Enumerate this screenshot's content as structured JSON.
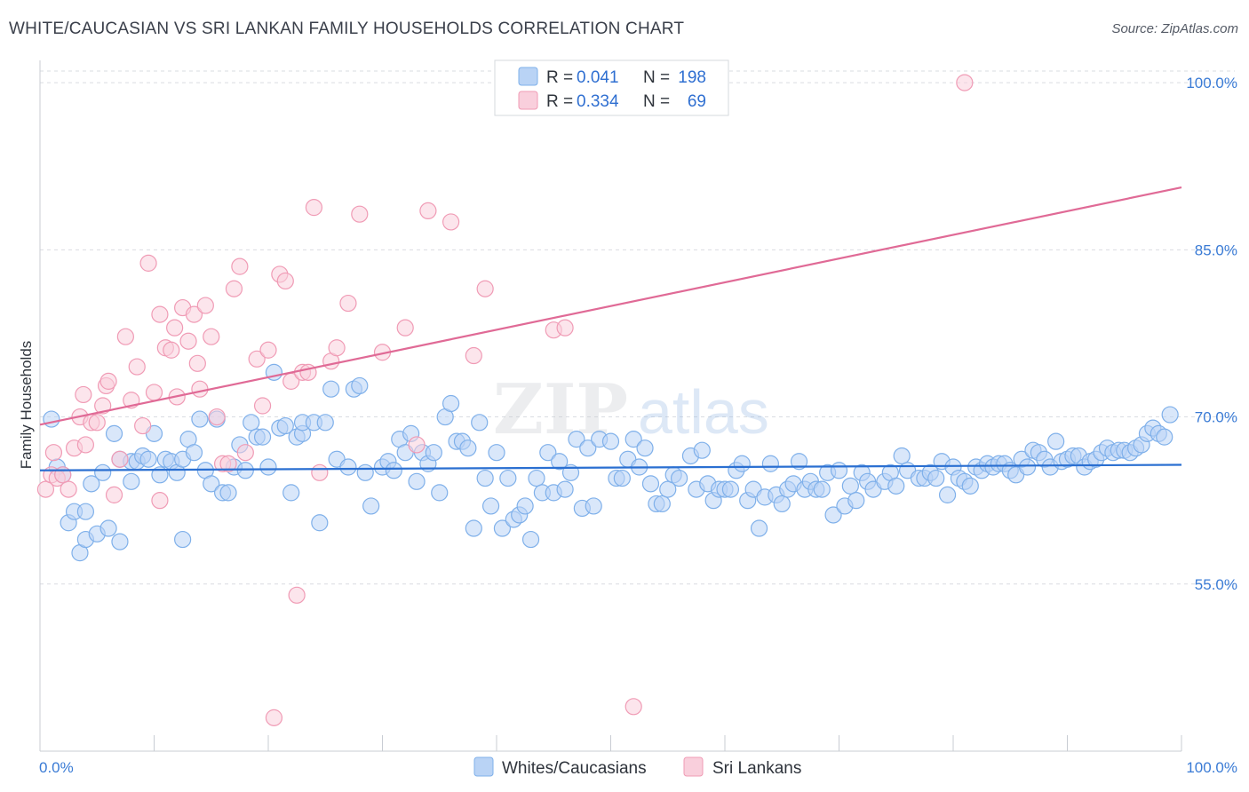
{
  "title": "WHITE/CAUCASIAN VS SRI LANKAN FAMILY HOUSEHOLDS CORRELATION CHART",
  "source": "Source: ZipAtlas.com",
  "chart_data": {
    "type": "scatter",
    "title": "WHITE/CAUCASIAN VS SRI LANKAN FAMILY HOUSEHOLDS CORRELATION CHART",
    "xlabel": "",
    "ylabel": "Family Households",
    "xlim": [
      0,
      100
    ],
    "ylim": [
      40,
      102
    ],
    "x_tick_labels": [
      "0.0%",
      "100.0%"
    ],
    "y_ticks": [
      55,
      70,
      85,
      100
    ],
    "y_tick_labels": [
      "55.0%",
      "70.0%",
      "85.0%",
      "100.0%"
    ],
    "grid": true,
    "legend": [
      {
        "name": "Whites/Caucasians",
        "r_label": "R =",
        "r": "0.041",
        "n_label": "N =",
        "n": "198",
        "color": "#7fb0ea",
        "fill": "#b9d3f5"
      },
      {
        "name": "Sri Lankans",
        "r_label": "R =",
        "r": "0.334",
        "n_label": "N =",
        "n": "69",
        "color": "#f09bb5",
        "fill": "#f9cfdc"
      }
    ],
    "series": [
      {
        "name": "Whites/Caucasians",
        "trend": {
          "x": [
            0,
            100
          ],
          "y": [
            65.2,
            65.7
          ]
        },
        "points": [
          [
            1,
            69.8
          ],
          [
            1.5,
            65.5
          ],
          [
            2,
            64.8
          ],
          [
            2.5,
            60.5
          ],
          [
            3,
            61.5
          ],
          [
            3.5,
            57.8
          ],
          [
            4,
            61.5
          ],
          [
            4,
            59.0
          ],
          [
            4.5,
            64.0
          ],
          [
            5,
            59.5
          ],
          [
            5.5,
            65.0
          ],
          [
            6,
            60.0
          ],
          [
            6.5,
            68.5
          ],
          [
            7,
            58.8
          ],
          [
            7,
            66.2
          ],
          [
            8,
            64.2
          ],
          [
            8,
            66.0
          ],
          [
            8.5,
            66.0
          ],
          [
            9,
            66.5
          ],
          [
            9.5,
            66.2
          ],
          [
            10,
            68.5
          ],
          [
            10.5,
            64.8
          ],
          [
            11,
            66.2
          ],
          [
            11.5,
            66.0
          ],
          [
            12,
            65.0
          ],
          [
            12.5,
            59.0
          ],
          [
            12.5,
            66.2
          ],
          [
            13,
            68.0
          ],
          [
            13.5,
            66.8
          ],
          [
            14,
            69.8
          ],
          [
            14.5,
            65.2
          ],
          [
            15,
            64.0
          ],
          [
            15.5,
            69.8
          ],
          [
            16,
            63.2
          ],
          [
            16.5,
            63.2
          ],
          [
            17,
            65.5
          ],
          [
            17.5,
            67.5
          ],
          [
            18,
            65.2
          ],
          [
            18.5,
            69.5
          ],
          [
            19,
            68.2
          ],
          [
            19.5,
            68.2
          ],
          [
            20,
            65.5
          ],
          [
            20.5,
            74.0
          ],
          [
            21,
            69.0
          ],
          [
            21.5,
            69.2
          ],
          [
            22,
            63.2
          ],
          [
            22.5,
            68.2
          ],
          [
            23,
            68.5
          ],
          [
            23,
            69.5
          ],
          [
            24,
            69.5
          ],
          [
            24.5,
            60.5
          ],
          [
            25,
            69.5
          ],
          [
            25.5,
            72.5
          ],
          [
            26,
            66.2
          ],
          [
            27,
            65.5
          ],
          [
            27.5,
            72.5
          ],
          [
            28,
            72.8
          ],
          [
            28.5,
            65.0
          ],
          [
            29,
            62.0
          ],
          [
            30,
            65.5
          ],
          [
            30.5,
            66.0
          ],
          [
            31,
            65.2
          ],
          [
            31.5,
            68.0
          ],
          [
            32,
            66.8
          ],
          [
            32.5,
            68.5
          ],
          [
            33,
            64.2
          ],
          [
            33.5,
            66.8
          ],
          [
            34,
            65.8
          ],
          [
            34.5,
            66.8
          ],
          [
            35,
            63.2
          ],
          [
            35.5,
            70.0
          ],
          [
            36,
            71.2
          ],
          [
            36.5,
            67.8
          ],
          [
            37,
            67.8
          ],
          [
            37.5,
            67.2
          ],
          [
            38,
            60.0
          ],
          [
            38.5,
            69.5
          ],
          [
            39,
            64.5
          ],
          [
            39.5,
            62.0
          ],
          [
            40,
            66.8
          ],
          [
            40.5,
            60.0
          ],
          [
            41,
            64.5
          ],
          [
            41.5,
            60.8
          ],
          [
            42,
            61.2
          ],
          [
            42.5,
            62.0
          ],
          [
            43,
            59.0
          ],
          [
            43.5,
            64.5
          ],
          [
            44,
            63.2
          ],
          [
            44.5,
            66.8
          ],
          [
            45,
            63.2
          ],
          [
            45.5,
            66.0
          ],
          [
            46,
            63.5
          ],
          [
            46.5,
            65.0
          ],
          [
            47,
            68.0
          ],
          [
            47.5,
            61.8
          ],
          [
            48,
            67.2
          ],
          [
            48.5,
            62.0
          ],
          [
            49,
            68.0
          ],
          [
            50,
            67.8
          ],
          [
            50.5,
            64.5
          ],
          [
            51,
            64.5
          ],
          [
            51.5,
            66.2
          ],
          [
            52,
            68.0
          ],
          [
            52.5,
            65.5
          ],
          [
            53,
            67.2
          ],
          [
            53.5,
            64.0
          ],
          [
            54,
            62.2
          ],
          [
            54.5,
            62.2
          ],
          [
            55,
            63.5
          ],
          [
            55.5,
            64.8
          ],
          [
            56,
            64.5
          ],
          [
            57,
            66.5
          ],
          [
            57.5,
            63.5
          ],
          [
            58,
            67.0
          ],
          [
            58.5,
            64.0
          ],
          [
            59,
            62.5
          ],
          [
            59.5,
            63.5
          ],
          [
            60,
            63.5
          ],
          [
            60.5,
            63.5
          ],
          [
            61,
            65.2
          ],
          [
            61.5,
            65.8
          ],
          [
            62,
            62.5
          ],
          [
            62.5,
            63.5
          ],
          [
            63,
            60.0
          ],
          [
            63.5,
            62.8
          ],
          [
            64,
            65.8
          ],
          [
            64.5,
            63.0
          ],
          [
            65,
            62.2
          ],
          [
            65.5,
            63.5
          ],
          [
            66,
            64.0
          ],
          [
            66.5,
            66.0
          ],
          [
            67,
            63.5
          ],
          [
            67.5,
            64.2
          ],
          [
            68,
            63.5
          ],
          [
            68.5,
            63.5
          ],
          [
            69,
            65.0
          ],
          [
            69.5,
            61.2
          ],
          [
            70,
            65.2
          ],
          [
            70.5,
            62.0
          ],
          [
            71,
            63.8
          ],
          [
            71.5,
            62.5
          ],
          [
            72,
            65.0
          ],
          [
            72.5,
            64.2
          ],
          [
            73,
            63.5
          ],
          [
            74,
            64.2
          ],
          [
            74.5,
            65.0
          ],
          [
            75,
            63.8
          ],
          [
            75.5,
            66.5
          ],
          [
            76,
            65.2
          ],
          [
            77,
            64.5
          ],
          [
            77.5,
            64.5
          ],
          [
            78,
            65.0
          ],
          [
            78.5,
            64.5
          ],
          [
            79,
            66.0
          ],
          [
            79.5,
            63.0
          ],
          [
            80,
            65.5
          ],
          [
            80.5,
            64.5
          ],
          [
            81,
            64.2
          ],
          [
            81.5,
            63.8
          ],
          [
            82,
            65.5
          ],
          [
            82.5,
            65.2
          ],
          [
            83,
            65.8
          ],
          [
            83.5,
            65.5
          ],
          [
            84,
            65.8
          ],
          [
            84.5,
            65.8
          ],
          [
            85,
            65.2
          ],
          [
            85.5,
            64.8
          ],
          [
            86,
            66.2
          ],
          [
            86.5,
            65.5
          ],
          [
            87,
            67.0
          ],
          [
            87.5,
            66.8
          ],
          [
            88,
            66.2
          ],
          [
            88.5,
            65.5
          ],
          [
            89,
            67.8
          ],
          [
            89.5,
            66.0
          ],
          [
            90,
            66.2
          ],
          [
            90.5,
            66.5
          ],
          [
            91,
            66.5
          ],
          [
            91.5,
            65.5
          ],
          [
            92,
            66.0
          ],
          [
            92.5,
            66.2
          ],
          [
            93,
            66.8
          ],
          [
            93.5,
            67.2
          ],
          [
            94,
            66.8
          ],
          [
            94.5,
            67.0
          ],
          [
            95,
            67.0
          ],
          [
            95.5,
            66.8
          ],
          [
            96,
            67.2
          ],
          [
            96.5,
            67.5
          ],
          [
            97,
            68.5
          ],
          [
            97.5,
            69.0
          ],
          [
            98,
            68.5
          ],
          [
            98.5,
            68.2
          ],
          [
            99,
            70.2
          ]
        ]
      },
      {
        "name": "Sri Lankans",
        "trend": {
          "x": [
            0,
            100
          ],
          "y": [
            69.3,
            90.6
          ]
        },
        "points": [
          [
            0.5,
            63.5
          ],
          [
            1,
            64.8
          ],
          [
            1.2,
            66.8
          ],
          [
            1.5,
            64.5
          ],
          [
            2,
            64.8
          ],
          [
            2.5,
            63.5
          ],
          [
            3,
            67.2
          ],
          [
            3.5,
            70.0
          ],
          [
            3.8,
            72.0
          ],
          [
            4,
            67.5
          ],
          [
            4.5,
            69.5
          ],
          [
            5,
            69.5
          ],
          [
            5.5,
            71.0
          ],
          [
            5.8,
            72.8
          ],
          [
            6,
            73.2
          ],
          [
            6.5,
            63.0
          ],
          [
            7,
            66.2
          ],
          [
            7.5,
            77.2
          ],
          [
            8,
            71.5
          ],
          [
            8.5,
            74.5
          ],
          [
            9,
            69.2
          ],
          [
            9.5,
            83.8
          ],
          [
            10,
            72.2
          ],
          [
            10.5,
            79.2
          ],
          [
            10.5,
            62.5
          ],
          [
            11,
            76.2
          ],
          [
            11.5,
            76.0
          ],
          [
            11.8,
            78.0
          ],
          [
            12,
            71.8
          ],
          [
            12.5,
            79.8
          ],
          [
            13,
            76.8
          ],
          [
            13.5,
            79.2
          ],
          [
            13.8,
            74.8
          ],
          [
            14,
            72.5
          ],
          [
            14.5,
            80.0
          ],
          [
            15,
            77.2
          ],
          [
            15.5,
            70.0
          ],
          [
            16,
            65.8
          ],
          [
            16.5,
            65.8
          ],
          [
            17,
            81.5
          ],
          [
            17.5,
            83.5
          ],
          [
            18,
            66.8
          ],
          [
            19,
            75.2
          ],
          [
            19.5,
            71.0
          ],
          [
            20,
            76.0
          ],
          [
            20.5,
            43.0
          ],
          [
            21,
            82.8
          ],
          [
            21.5,
            82.2
          ],
          [
            22,
            73.2
          ],
          [
            22.5,
            54.0
          ],
          [
            23,
            74.0
          ],
          [
            23.5,
            74.0
          ],
          [
            24,
            88.8
          ],
          [
            24.5,
            65.0
          ],
          [
            25.5,
            75.0
          ],
          [
            26,
            76.2
          ],
          [
            27,
            80.2
          ],
          [
            28,
            88.2
          ],
          [
            30,
            75.8
          ],
          [
            32,
            78.0
          ],
          [
            33,
            67.5
          ],
          [
            34,
            88.5
          ],
          [
            36,
            87.5
          ],
          [
            38,
            75.5
          ],
          [
            39,
            81.5
          ],
          [
            45,
            77.8
          ],
          [
            46,
            78.0
          ],
          [
            52,
            44.0
          ],
          [
            81,
            100.0
          ]
        ]
      }
    ]
  }
}
